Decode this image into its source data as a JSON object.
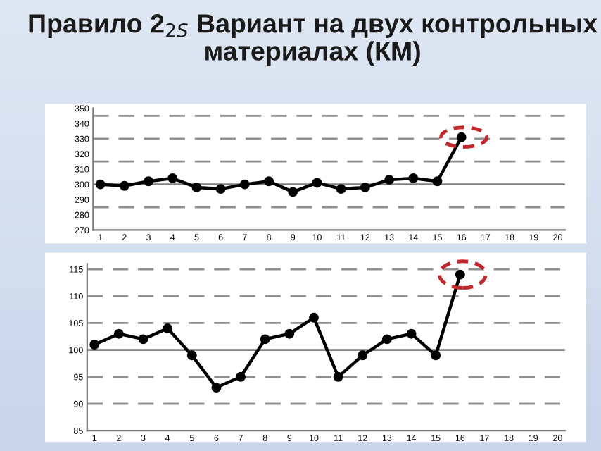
{
  "chart_data": [
    {
      "type": "line",
      "title": "Правило 2$_{2S}$ Вариант на двух контрольных материалах (КМ)",
      "categories": [
        "1",
        "2",
        "3",
        "4",
        "5",
        "6",
        "7",
        "8",
        "9",
        "10",
        "11",
        "12",
        "13",
        "14",
        "15",
        "16",
        "17",
        "18",
        "19",
        "20"
      ],
      "series": [
        {
          "color": "#000000",
          "values": [
            300,
            299,
            302,
            304,
            298,
            297,
            300,
            302,
            295,
            301,
            297,
            298,
            303,
            304,
            302,
            331,
            null,
            null,
            null,
            null
          ]
        }
      ],
      "ylim": [
        270,
        350
      ],
      "yticks": [
        270,
        280,
        290,
        300,
        310,
        320,
        330,
        340,
        350
      ],
      "ref_lines": [
        {
          "axis": "y",
          "value": 300,
          "color": "#808080",
          "line_style": "solid"
        },
        {
          "axis": "y",
          "value": 285,
          "color": "#909090",
          "line_style": "dashed"
        },
        {
          "axis": "y",
          "value": 315,
          "color": "#909090",
          "line_style": "dashed"
        },
        {
          "axis": "y",
          "value": 330,
          "color": "#909090",
          "line_style": "dashed"
        },
        {
          "axis": "y",
          "value": 345,
          "color": "#909090",
          "line_style": "dashed"
        }
      ],
      "marker": "circle",
      "line_style": "solid",
      "grid": false
    },
    {
      "type": "line",
      "categories": [
        "1",
        "2",
        "3",
        "4",
        "5",
        "6",
        "7",
        "8",
        "9",
        "10",
        "11",
        "12",
        "13",
        "14",
        "15",
        "16",
        "17",
        "18",
        "19",
        "20"
      ],
      "series": [
        {
          "color": "#000000",
          "values": [
            101,
            103,
            102,
            104,
            99,
            93,
            95,
            102,
            103,
            106,
            95,
            99,
            102,
            103,
            99,
            114,
            null,
            null,
            null,
            null
          ]
        }
      ],
      "ylim": [
        85,
        116
      ],
      "yticks": [
        85,
        90,
        95,
        100,
        105,
        110,
        115
      ],
      "ref_lines": [
        {
          "axis": "y",
          "value": 100,
          "color": "#808080",
          "line_style": "solid"
        },
        {
          "axis": "y",
          "value": 90,
          "color": "#909090",
          "line_style": "dashed"
        },
        {
          "axis": "y",
          "value": 95,
          "color": "#909090",
          "line_style": "dashed"
        },
        {
          "axis": "y",
          "value": 105,
          "color": "#909090",
          "line_style": "dashed"
        },
        {
          "axis": "y",
          "value": 110,
          "color": "#909090",
          "line_style": "dashed"
        },
        {
          "axis": "y",
          "value": 115,
          "color": "#909090",
          "line_style": "dashed"
        }
      ],
      "marker": "circle",
      "line_style": "solid",
      "grid": false
    }
  ]
}
